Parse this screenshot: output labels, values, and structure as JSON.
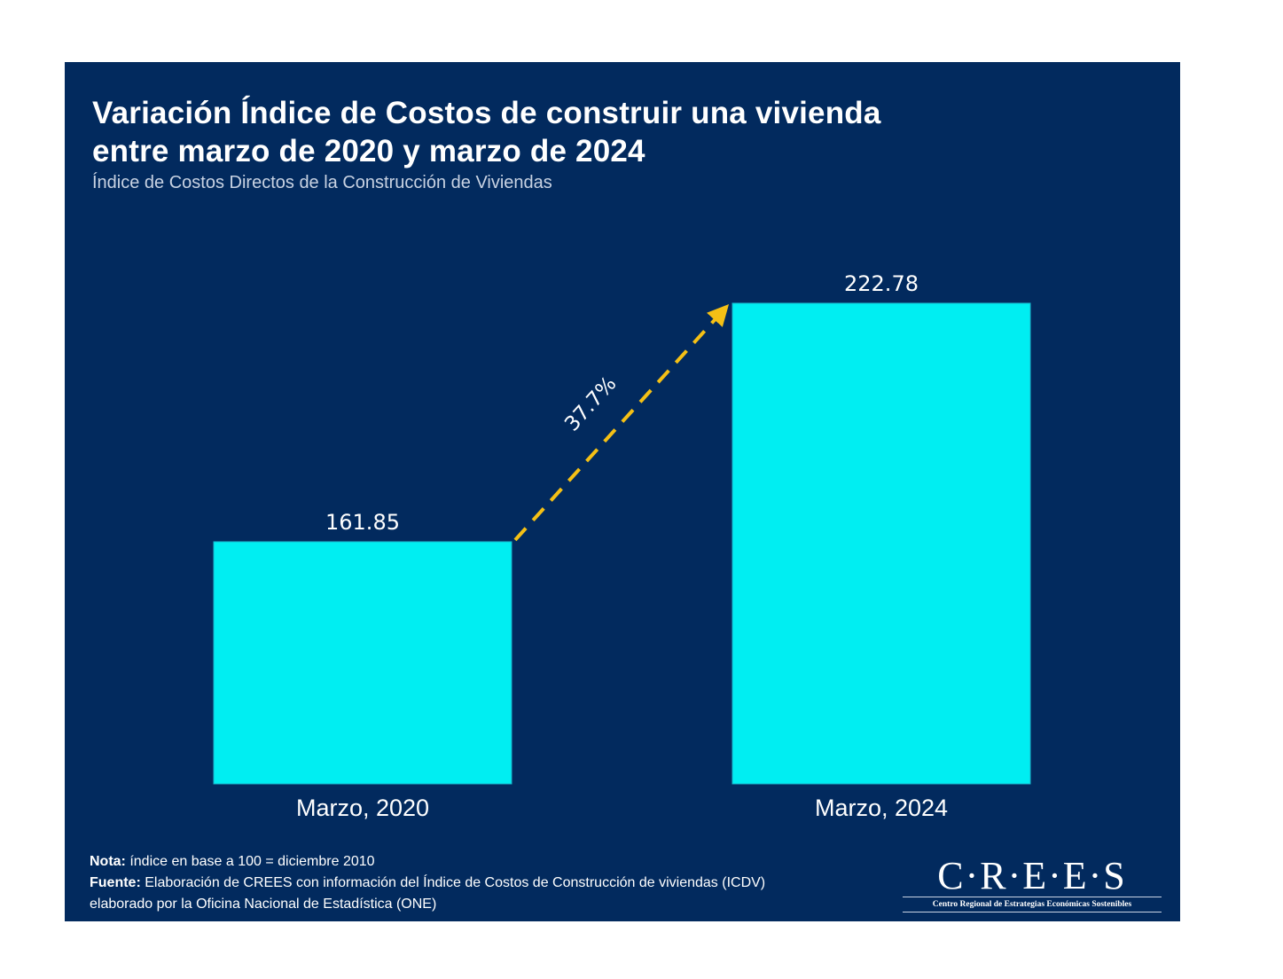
{
  "header": {
    "title_line1": "Variación Índice de Costos de construir una vivienda",
    "title_line2": "entre marzo de 2020 y marzo de 2024",
    "subtitle": "Índice de Costos Directos de la Construcción de Viviendas"
  },
  "chart_data": {
    "type": "bar",
    "title": "Variación Índice de Costos de construir una vivienda entre marzo de 2020 y marzo de 2024",
    "subtitle": "Índice de Costos Directos de la Construcción de Viviendas",
    "categories": [
      "Marzo, 2020",
      "Marzo, 2024"
    ],
    "values": [
      161.85,
      222.78
    ],
    "value_labels": [
      "161.85",
      "222.78"
    ],
    "xlabel": "",
    "ylabel": "",
    "ylim": [
      100,
      235
    ],
    "grid": false,
    "legend": "none",
    "annotations": [
      {
        "type": "arrow",
        "from_category": "Marzo, 2020",
        "to_category": "Marzo, 2024",
        "label": "37.7%",
        "style": "dashed"
      }
    ],
    "colors": {
      "bar": "#00eef2",
      "arrow": "#f5c015",
      "background": "#022a5e",
      "text": "#ffffff"
    }
  },
  "footer": {
    "note_label": "Nota:",
    "note_text": " índice en base a 100 = diciembre 2010",
    "source_label": "Fuente:",
    "source_text": " Elaboración de CREES con información del Índice de Costos de Construcción de viviendas (ICDV) elaborado por la Oficina Nacional de Estadística (ONE)"
  },
  "logo": {
    "wordmark": "C·R·E·E·S",
    "tagline": "Centro Regional de Estrategias Económicas Sostenibles"
  }
}
